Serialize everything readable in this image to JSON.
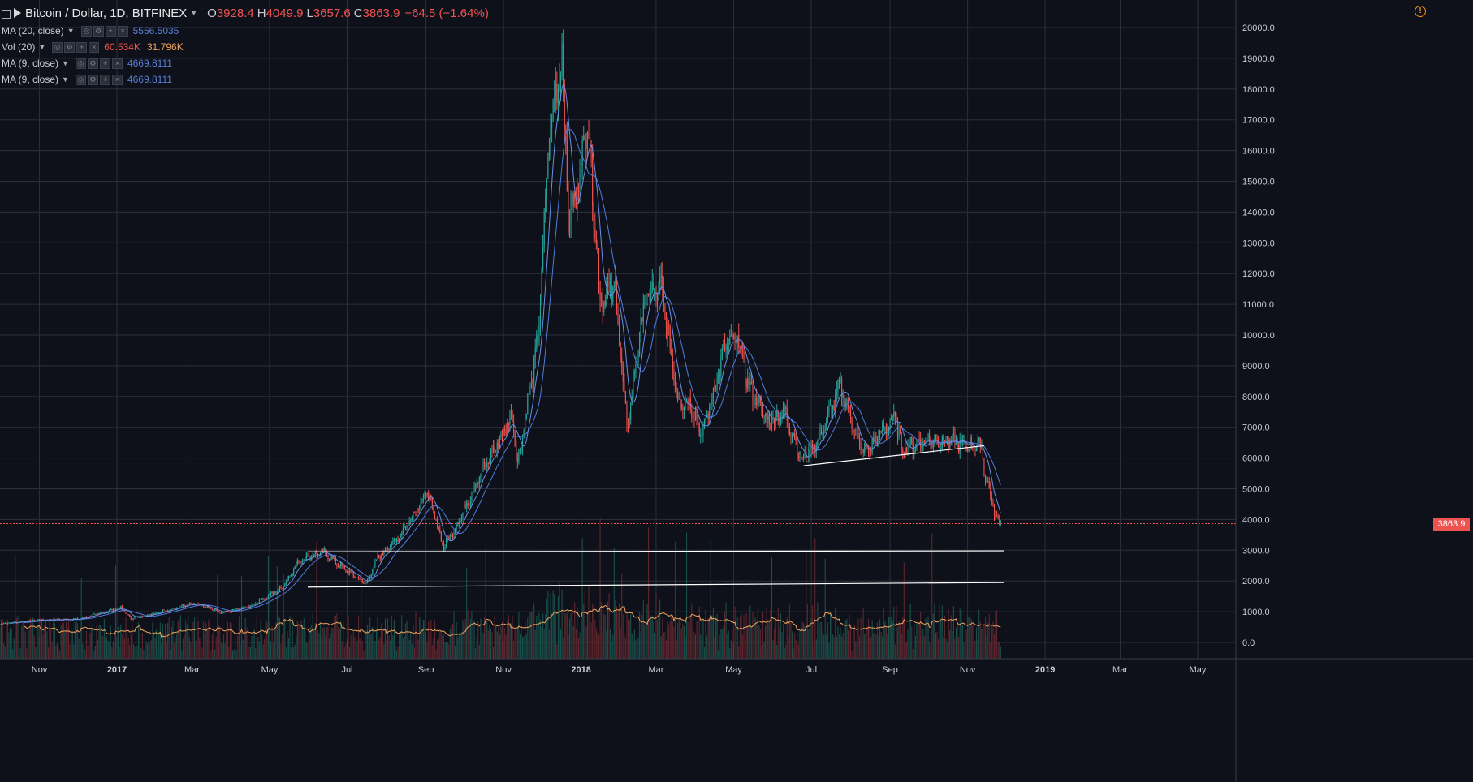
{
  "header": {
    "symbol": "Bitcoin / Dollar, 1D, BITFINEX",
    "ohlc": [
      {
        "k": "O",
        "v": "3928.4"
      },
      {
        "k": "H",
        "v": "4049.9"
      },
      {
        "k": "L",
        "v": "3657.6"
      },
      {
        "k": "C",
        "v": "3863.9"
      }
    ],
    "change": "−64.5 (−1.64%)"
  },
  "indicators": [
    {
      "label": "MA (20, close)",
      "values": [
        "5556.5035"
      ]
    },
    {
      "label": "Vol (20)",
      "values": [
        "60.534K",
        "31.796K"
      ]
    },
    {
      "label": "MA (9, close)",
      "values": [
        "4669.8111"
      ]
    },
    {
      "label": "MA (9, close)",
      "values": [
        "4669.8111"
      ]
    }
  ],
  "last_price_label": "3863.9",
  "colors": {
    "background": "#0f111a",
    "grid": "#2b2f3a",
    "up": "#26a69a",
    "down": "#ef5350",
    "ma": "#4f7bd9",
    "vol_ma": "#f0a35a",
    "trendline": "#ffffff",
    "warning": "#f7931a"
  },
  "icons": {
    "warning": "warning-circle-icon",
    "collapse": "collapse-square-icon"
  },
  "chart_data": {
    "type": "candlestick",
    "x_ticks": [
      "Nov",
      "2017",
      "Mar",
      "May",
      "Jul",
      "Sep",
      "Nov",
      "2018",
      "Mar",
      "May",
      "Jul",
      "Sep",
      "Nov",
      "2019",
      "Mar",
      "May"
    ],
    "x_tick_dates": [
      "2016-11-01",
      "2017-01-01",
      "2017-03-01",
      "2017-05-01",
      "2017-07-01",
      "2017-09-01",
      "2017-11-01",
      "2018-01-01",
      "2018-03-01",
      "2018-05-01",
      "2018-07-01",
      "2018-09-01",
      "2018-11-01",
      "2019-01-01",
      "2019-03-01",
      "2019-05-01"
    ],
    "y_ticks": [
      "0.0",
      "1000.0",
      "2000.0",
      "3000.0",
      "4000.0",
      "5000.0",
      "6000.0",
      "7000.0",
      "8000.0",
      "9000.0",
      "10000.0",
      "11000.0",
      "12000.0",
      "13000.0",
      "14000.0",
      "15000.0",
      "16000.0",
      "17000.0",
      "18000.0",
      "19000.0",
      "20000.0"
    ],
    "ylim": [
      0,
      20000
    ],
    "xlim": [
      "2016-10-01",
      "2019-05-31"
    ],
    "price_path": [
      [
        "2016-10-01",
        610
      ],
      [
        "2016-11-01",
        730
      ],
      [
        "2016-12-01",
        760
      ],
      [
        "2017-01-04",
        1130
      ],
      [
        "2017-01-12",
        780
      ],
      [
        "2017-02-01",
        960
      ],
      [
        "2017-03-03",
        1290
      ],
      [
        "2017-03-24",
        950
      ],
      [
        "2017-04-15",
        1180
      ],
      [
        "2017-05-10",
        1750
      ],
      [
        "2017-05-25",
        2700
      ],
      [
        "2017-06-12",
        2950
      ],
      [
        "2017-06-25",
        2500
      ],
      [
        "2017-07-16",
        1900
      ],
      [
        "2017-07-25",
        2750
      ],
      [
        "2017-08-10",
        3400
      ],
      [
        "2017-08-30",
        4700
      ],
      [
        "2017-09-02",
        4900
      ],
      [
        "2017-09-15",
        3100
      ],
      [
        "2017-09-25",
        3800
      ],
      [
        "2017-10-12",
        5300
      ],
      [
        "2017-10-21",
        6000
      ],
      [
        "2017-11-08",
        7400
      ],
      [
        "2017-11-12",
        5800
      ],
      [
        "2017-11-28",
        9800
      ],
      [
        "2017-12-07",
        16500
      ],
      [
        "2017-12-17",
        19200
      ],
      [
        "2017-12-22",
        13800
      ],
      [
        "2017-12-28",
        14500
      ],
      [
        "2018-01-06",
        17100
      ],
      [
        "2018-01-16",
        11200
      ],
      [
        "2018-01-28",
        11500
      ],
      [
        "2018-02-06",
        6900
      ],
      [
        "2018-02-20",
        11200
      ],
      [
        "2018-03-05",
        11500
      ],
      [
        "2018-03-18",
        7900
      ],
      [
        "2018-03-28",
        7800
      ],
      [
        "2018-04-06",
        6700
      ],
      [
        "2018-04-24",
        9600
      ],
      [
        "2018-05-05",
        9850
      ],
      [
        "2018-05-12",
        8400
      ],
      [
        "2018-05-28",
        7200
      ],
      [
        "2018-06-10",
        7500
      ],
      [
        "2018-06-24",
        5900
      ],
      [
        "2018-07-08",
        6700
      ],
      [
        "2018-07-24",
        8350
      ],
      [
        "2018-08-09",
        6300
      ],
      [
        "2018-08-14",
        6200
      ],
      [
        "2018-08-30",
        7100
      ],
      [
        "2018-09-05",
        7350
      ],
      [
        "2018-09-10",
        6300
      ],
      [
        "2018-10-01",
        6600
      ],
      [
        "2018-10-20",
        6500
      ],
      [
        "2018-11-12",
        6400
      ],
      [
        "2018-11-14",
        5600
      ],
      [
        "2018-11-20",
        4600
      ],
      [
        "2018-11-24",
        3950
      ],
      [
        "2018-11-27",
        3864
      ]
    ],
    "moving_averages": [
      {
        "name": "MA (20, close)"
      },
      {
        "name": "MA (9, close)"
      }
    ],
    "volume": {
      "name": "Vol (20)"
    },
    "trendlines": [
      {
        "from": [
          "2017-05-31",
          2950
        ],
        "to": [
          "2018-11-30",
          2980
        ]
      },
      {
        "from": [
          "2017-05-31",
          1800
        ],
        "to": [
          "2018-11-30",
          1950
        ]
      },
      {
        "from": [
          "2018-06-25",
          5750
        ],
        "to": [
          "2018-11-14",
          6400
        ]
      }
    ],
    "last_price": 3863.9
  }
}
